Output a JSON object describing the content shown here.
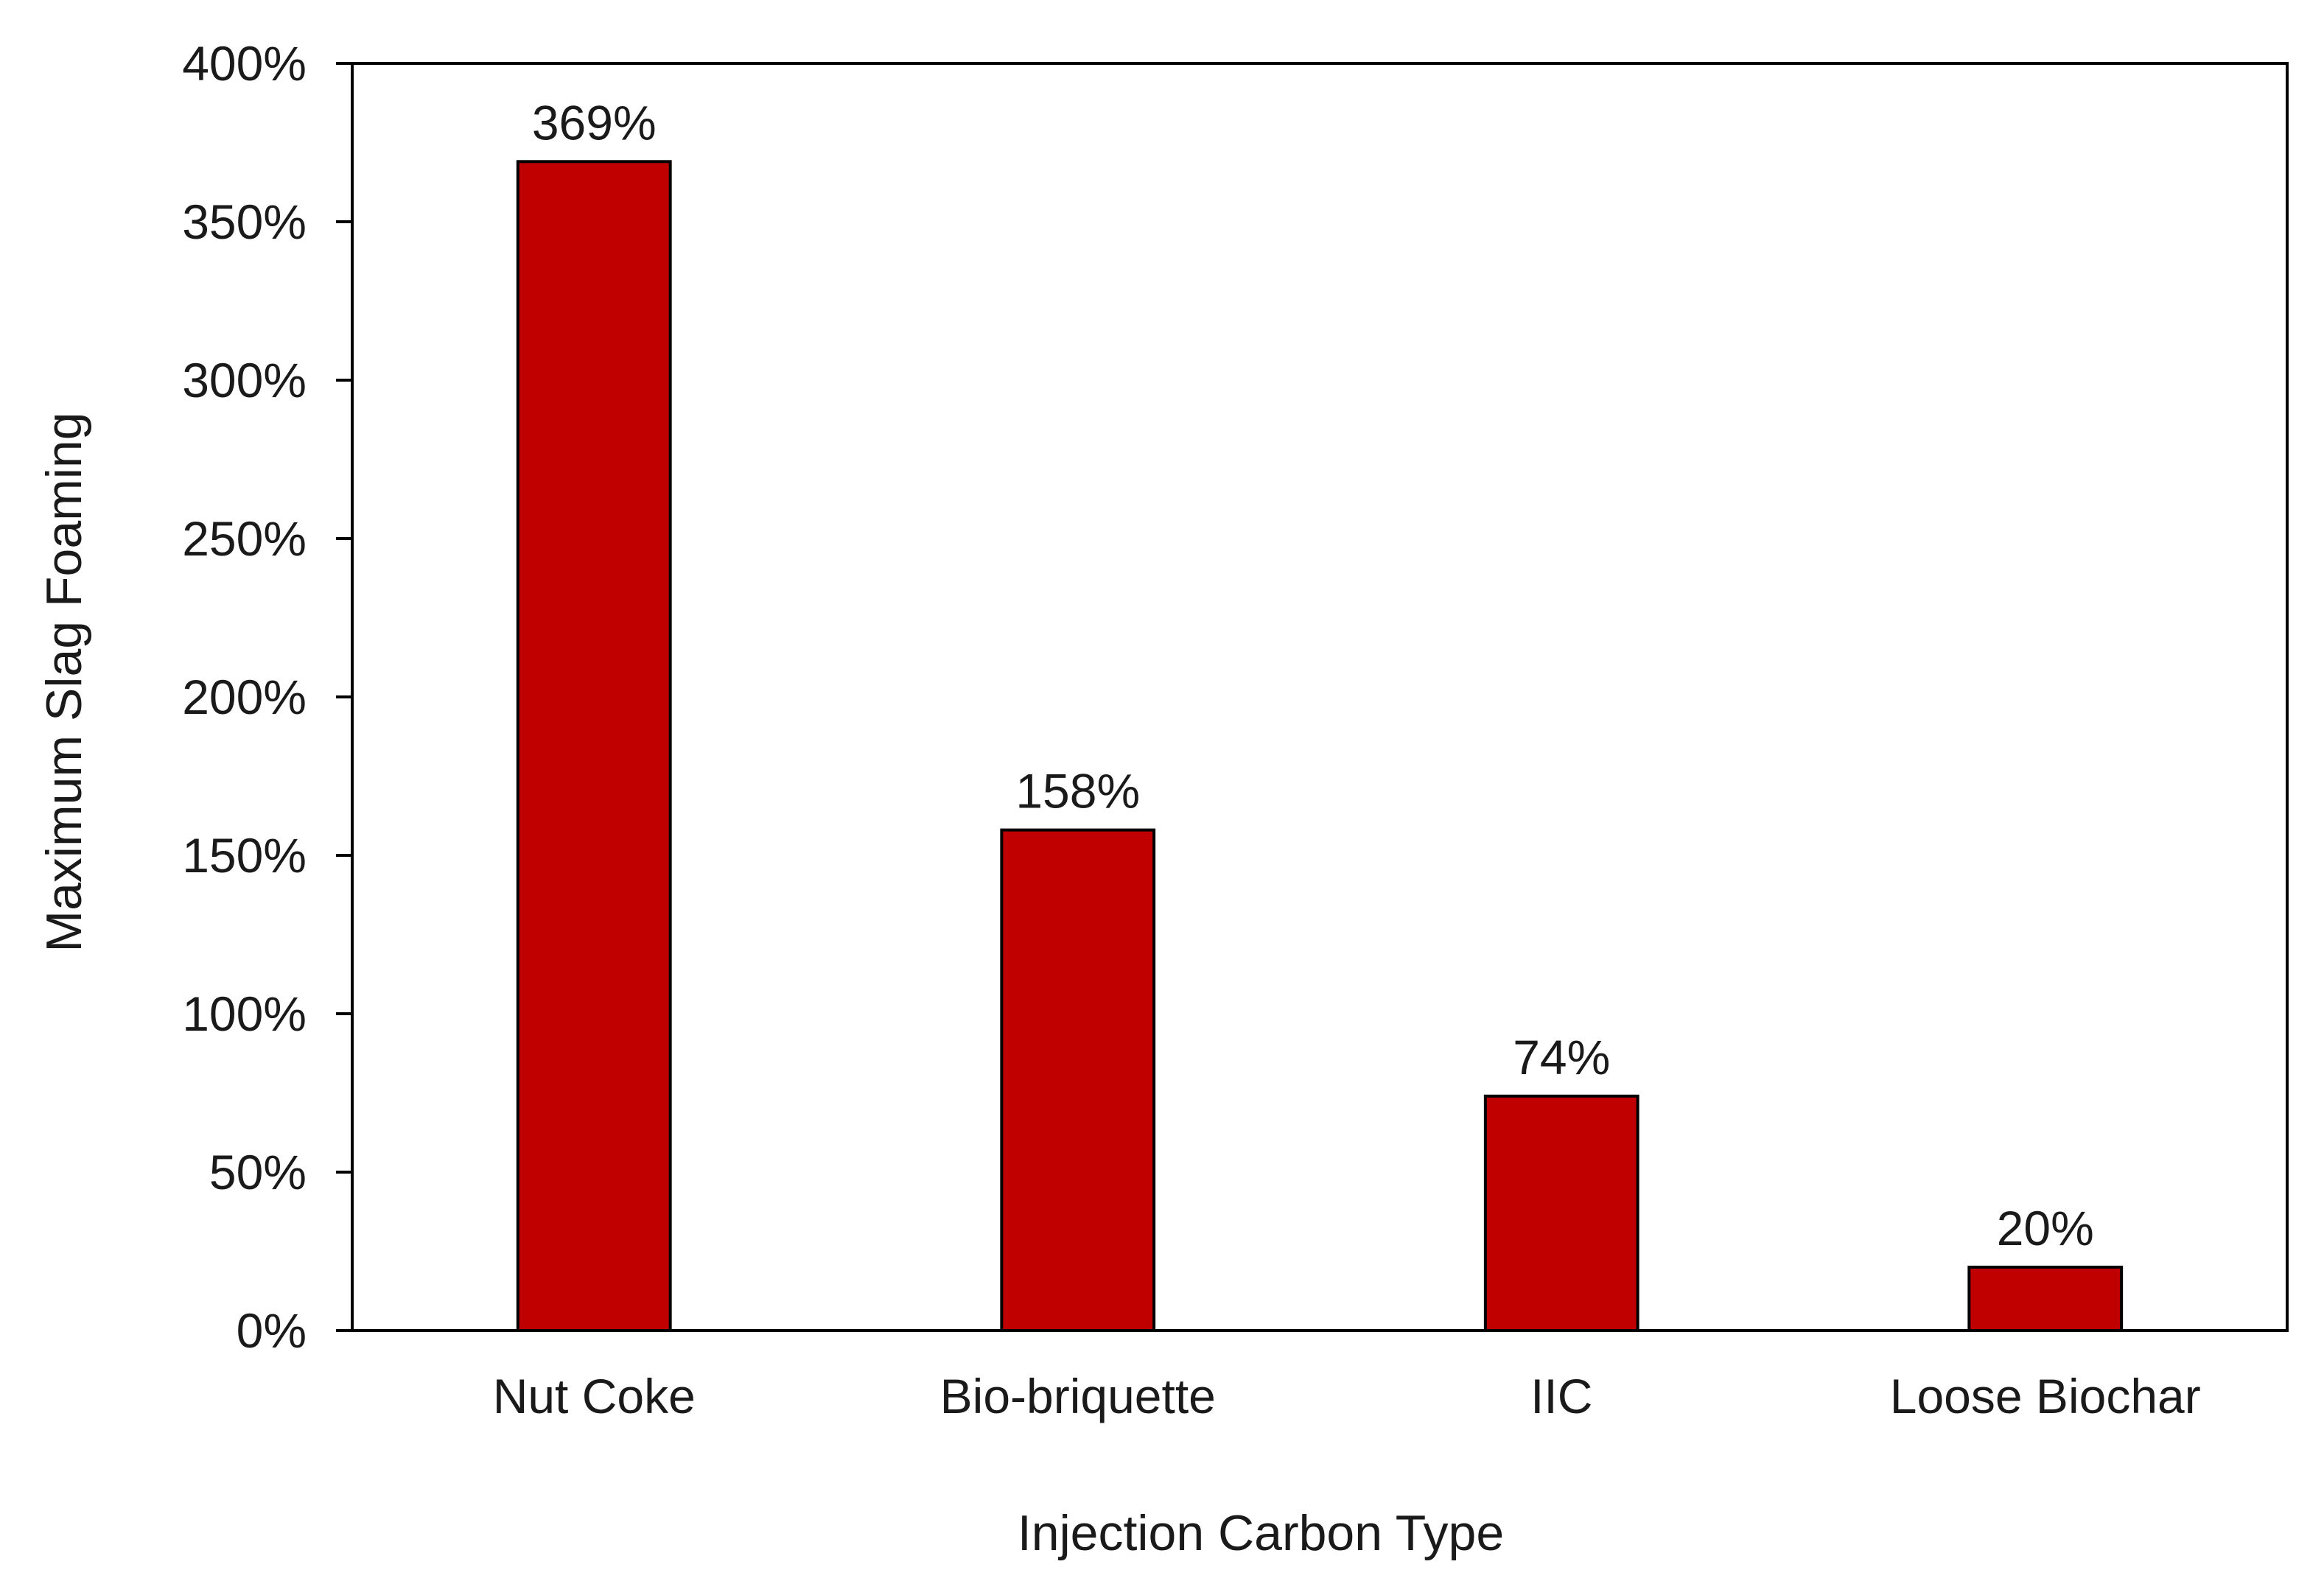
{
  "chart_data": {
    "type": "bar",
    "categories": [
      "Nut Coke",
      "Bio-briquette",
      "IIC",
      "Loose Biochar"
    ],
    "values": [
      369,
      158,
      74,
      20
    ],
    "data_labels": [
      "369%",
      "158%",
      "74%",
      "20%"
    ],
    "title": "",
    "xlabel": "Injection Carbon Type",
    "ylabel": "Maximum Slag Foaming",
    "ylim": [
      0,
      400
    ],
    "yticks": [
      0,
      50,
      100,
      150,
      200,
      250,
      300,
      350,
      400
    ],
    "ytick_labels": [
      "0%",
      "50%",
      "100%",
      "150%",
      "200%",
      "250%",
      "300%",
      "350%",
      "400%"
    ],
    "grid": false,
    "legend": "none",
    "bar_color": "#C00000"
  }
}
